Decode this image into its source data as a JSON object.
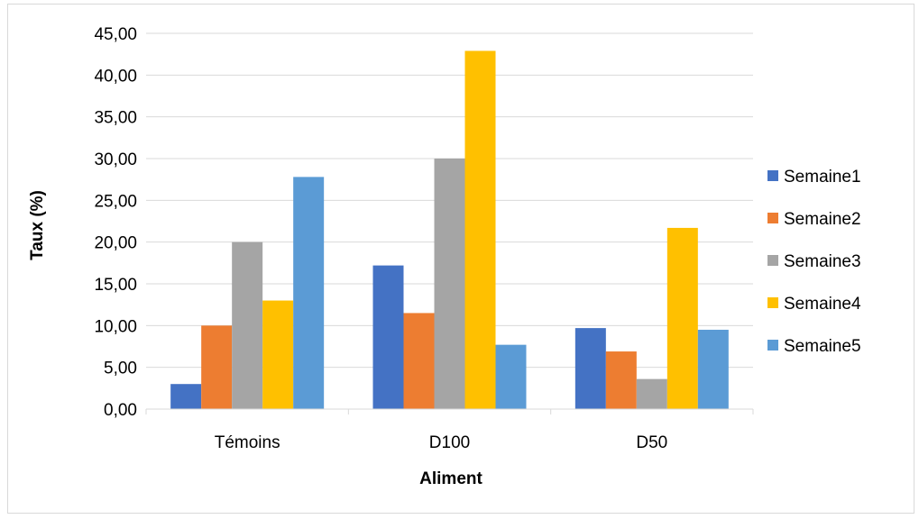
{
  "chart_data": {
    "type": "bar",
    "title": "",
    "xlabel": "Aliment",
    "ylabel": "Taux (%)",
    "ylim": [
      0,
      45
    ],
    "ytick_step": 5,
    "ytick_labels": [
      "0,00",
      "5,00",
      "10,00",
      "15,00",
      "20,00",
      "25,00",
      "30,00",
      "35,00",
      "40,00",
      "45,00"
    ],
    "categories": [
      "Témoins",
      "D100",
      "D50"
    ],
    "series": [
      {
        "name": "Semaine1",
        "color": "#4472c4",
        "values": [
          3.0,
          17.2,
          9.7
        ]
      },
      {
        "name": "Semaine2",
        "color": "#ed7d31",
        "values": [
          10.0,
          11.5,
          6.9
        ]
      },
      {
        "name": "Semaine3",
        "color": "#a5a5a5",
        "values": [
          20.0,
          30.0,
          3.6
        ]
      },
      {
        "name": "Semaine4",
        "color": "#ffc000",
        "values": [
          13.0,
          42.9,
          21.7
        ]
      },
      {
        "name": "Semaine5",
        "color": "#5b9bd5",
        "values": [
          27.8,
          7.7,
          9.5
        ]
      }
    ],
    "grid": true,
    "legend_position": "right"
  }
}
